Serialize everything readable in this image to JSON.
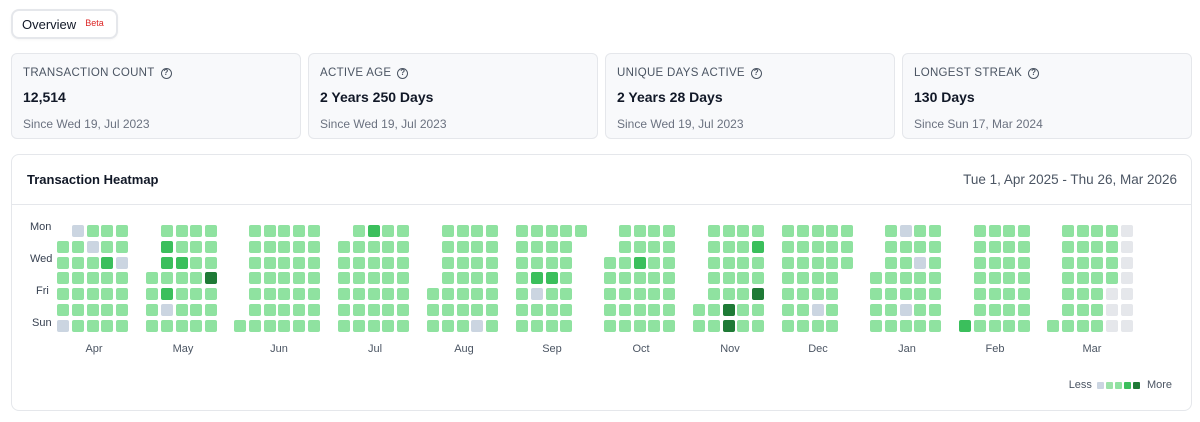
{
  "tab": {
    "label": "Overview",
    "badge": "Beta"
  },
  "stats": [
    {
      "title": "TRANSACTION COUNT",
      "value": "12,514",
      "sub": "Since Wed 19, Jul 2023"
    },
    {
      "title": "ACTIVE AGE",
      "value": "2 Years 250 Days",
      "sub": "Since Wed 19, Jul 2023"
    },
    {
      "title": "UNIQUE DAYS ACTIVE",
      "value": "2 Years 28 Days",
      "sub": "Since Wed 19, Jul 2023"
    },
    {
      "title": "LONGEST STREAK",
      "value": "130 Days",
      "sub": "Since Sun 17, Mar 2024"
    }
  ],
  "heatmap": {
    "title": "Transaction Heatmap",
    "range": "Tue 1, Apr 2025 - Thu 26, Mar 2026",
    "day_labels": [
      "Mon",
      "Wed",
      "Fri",
      "Sun"
    ],
    "months": [
      "Apr",
      "May",
      "Jun",
      "Jul",
      "Aug",
      "Sep",
      "Oct",
      "Nov",
      "Dec",
      "Jan",
      "Feb",
      "Mar"
    ],
    "legend": {
      "less": "Less",
      "more": "More"
    },
    "colors": {
      "none": "#cbd5e1",
      "level1": "#9be2a8",
      "level2": "#8fe2a0",
      "level3": "#3bbf5c",
      "level4": "#1f7a36",
      "future": "#e5e7eb"
    }
  }
}
